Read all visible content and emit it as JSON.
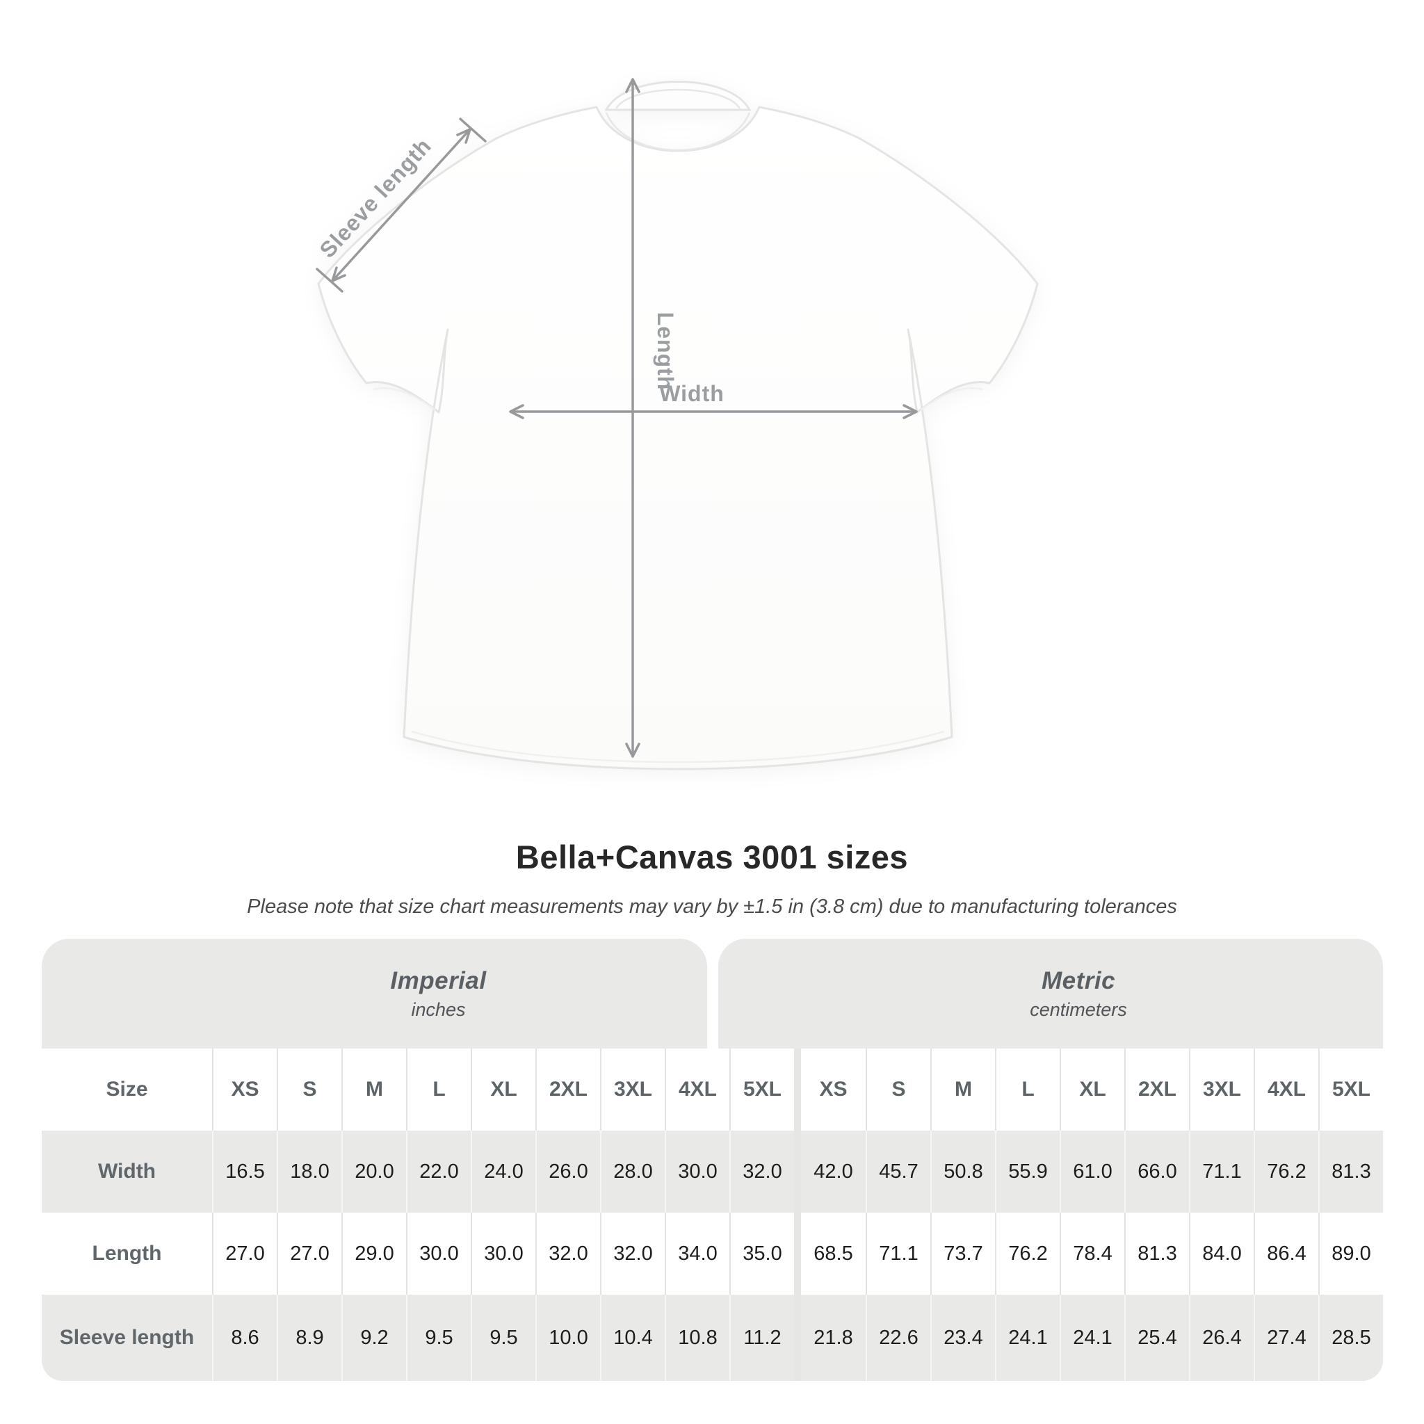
{
  "diagram": {
    "labels": {
      "sleeve_length": "Sleeve length",
      "length": "Length",
      "width": "Width"
    }
  },
  "title": "Bella+Canvas 3001 sizes",
  "subtitle": "Please note that size chart measurements may vary by ±1.5 in (3.8 cm) due to manufacturing tolerances",
  "table": {
    "sections": [
      {
        "label": "Imperial",
        "unit": "inches"
      },
      {
        "label": "Metric",
        "unit": "centimeters"
      }
    ],
    "size_header": "Size",
    "sizes": [
      "XS",
      "S",
      "M",
      "L",
      "XL",
      "2XL",
      "3XL",
      "4XL",
      "5XL"
    ],
    "rows": [
      {
        "label": "Width",
        "imperial": [
          "16.5",
          "18.0",
          "20.0",
          "22.0",
          "24.0",
          "26.0",
          "28.0",
          "30.0",
          "32.0"
        ],
        "metric": [
          "42.0",
          "45.7",
          "50.8",
          "55.9",
          "61.0",
          "66.0",
          "71.1",
          "76.2",
          "81.3"
        ]
      },
      {
        "label": "Length",
        "imperial": [
          "27.0",
          "27.0",
          "29.0",
          "30.0",
          "30.0",
          "32.0",
          "32.0",
          "34.0",
          "35.0"
        ],
        "metric": [
          "68.5",
          "71.1",
          "73.7",
          "76.2",
          "78.4",
          "81.3",
          "84.0",
          "86.4",
          "89.0"
        ]
      },
      {
        "label": "Sleeve length",
        "imperial": [
          "8.6",
          "8.9",
          "9.2",
          "9.5",
          "9.5",
          "10.0",
          "10.4",
          "10.8",
          "11.2"
        ],
        "metric": [
          "21.8",
          "22.6",
          "23.4",
          "24.1",
          "24.1",
          "25.4",
          "26.4",
          "27.4",
          "28.5"
        ]
      }
    ]
  },
  "chart_data": {
    "type": "table",
    "title": "Bella+Canvas 3001 sizes",
    "subtitle": "Please note that size chart measurements may vary by ±1.5 in (3.8 cm) due to manufacturing tolerances",
    "column_groups": [
      {
        "name": "Imperial",
        "unit": "inches"
      },
      {
        "name": "Metric",
        "unit": "centimeters"
      }
    ],
    "categories": [
      "XS",
      "S",
      "M",
      "L",
      "XL",
      "2XL",
      "3XL",
      "4XL",
      "5XL"
    ],
    "series": [
      {
        "name": "Width",
        "imperial": [
          16.5,
          18.0,
          20.0,
          22.0,
          24.0,
          26.0,
          28.0,
          30.0,
          32.0
        ],
        "metric": [
          42.0,
          45.7,
          50.8,
          55.9,
          61.0,
          66.0,
          71.1,
          76.2,
          81.3
        ]
      },
      {
        "name": "Length",
        "imperial": [
          27.0,
          27.0,
          29.0,
          30.0,
          30.0,
          32.0,
          32.0,
          34.0,
          35.0
        ],
        "metric": [
          68.5,
          71.1,
          73.7,
          76.2,
          78.4,
          81.3,
          84.0,
          86.4,
          89.0
        ]
      },
      {
        "name": "Sleeve length",
        "imperial": [
          8.6,
          8.9,
          9.2,
          9.5,
          9.5,
          10.0,
          10.4,
          10.8,
          11.2
        ],
        "metric": [
          21.8,
          22.6,
          23.4,
          24.1,
          24.1,
          25.4,
          26.4,
          27.4,
          28.5
        ]
      }
    ]
  }
}
